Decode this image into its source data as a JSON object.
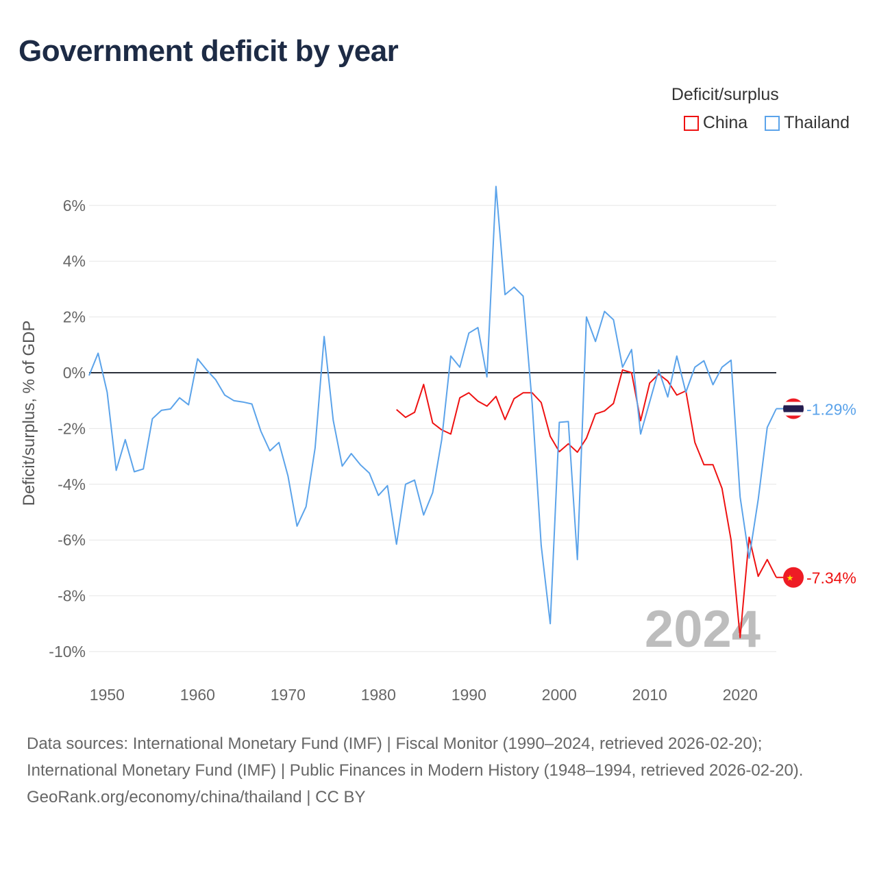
{
  "chart_data": {
    "type": "line",
    "title": "Government deficit by year",
    "ylabel": "Deficit/surplus, % of GDP",
    "xlabel": "",
    "xlim": [
      1948,
      2024
    ],
    "ylim": [
      -11,
      7
    ],
    "x_ticks": [
      1950,
      1960,
      1970,
      1980,
      1990,
      2000,
      2010,
      2020
    ],
    "x_tick_labels": [
      "1950",
      "1960",
      "1970",
      "1980",
      "1990",
      "2000",
      "2010",
      "2020"
    ],
    "y_ticks": [
      6,
      4,
      2,
      0,
      -2,
      -4,
      -6,
      -8,
      -10
    ],
    "y_tick_labels": [
      "6%",
      "4%",
      "2%",
      "0%",
      "-2%",
      "-4%",
      "-6%",
      "-8%",
      "-10%"
    ],
    "grid": true,
    "legend_title": "Deficit/surplus",
    "legend_position": "top-right",
    "watermark_year": "2024",
    "series": [
      {
        "name": "China",
        "color": "#ee1111",
        "start_year": 1982,
        "end_label": "-7.34%",
        "values": [
          -1.32,
          -1.6,
          -1.42,
          -0.42,
          -1.8,
          -2.05,
          -2.2,
          -0.9,
          -0.72,
          -1.02,
          -1.2,
          -0.85,
          -1.68,
          -0.93,
          -0.72,
          -0.72,
          -1.07,
          -2.28,
          -2.83,
          -2.55,
          -2.85,
          -2.35,
          -1.48,
          -1.37,
          -1.1,
          0.1,
          0.0,
          -1.72,
          -0.37,
          -0.05,
          -0.3,
          -0.8,
          -0.65,
          -2.5,
          -3.3,
          -3.3,
          -4.15,
          -6.0,
          -9.5,
          -5.9,
          -7.3,
          -6.7,
          -7.34
        ]
      },
      {
        "name": "Thailand",
        "color": "#5ba3ea",
        "start_year": 1948,
        "end_label": "-1.29%",
        "values": [
          -0.1,
          0.7,
          -0.7,
          -3.5,
          -2.4,
          -3.55,
          -3.45,
          -1.65,
          -1.35,
          -1.3,
          -0.9,
          -1.15,
          0.5,
          0.1,
          -0.25,
          -0.8,
          -1.0,
          -1.05,
          -1.12,
          -2.1,
          -2.8,
          -2.5,
          -3.7,
          -5.5,
          -4.8,
          -2.7,
          1.3,
          -1.7,
          -3.35,
          -2.9,
          -3.3,
          -3.6,
          -4.4,
          -4.05,
          -6.15,
          -4.0,
          -3.85,
          -5.1,
          -4.3,
          -2.4,
          0.6,
          0.2,
          1.42,
          1.62,
          -0.15,
          6.68,
          2.8,
          3.07,
          2.75,
          -1.1,
          -6.2,
          -9.0,
          -1.78,
          -1.75,
          -6.7,
          2.0,
          1.12,
          2.2,
          1.9,
          0.2,
          0.83,
          -2.2,
          -1.05,
          0.1,
          -0.87,
          0.6,
          -0.7,
          0.2,
          0.43,
          -0.43,
          0.2,
          0.45,
          -4.45,
          -6.65,
          -4.55,
          -1.96,
          -1.29
        ]
      }
    ]
  },
  "footer": {
    "line1": "Data sources: International Monetary Fund (IMF) | Fiscal Monitor (1990–2024, retrieved 2026-02-20);",
    "line2": "International Monetary Fund (IMF) | Public Finances in Modern History (1948–1994, retrieved 2026-02-20).",
    "line3": "GeoRank.org/economy/china/thailand | CC BY"
  }
}
